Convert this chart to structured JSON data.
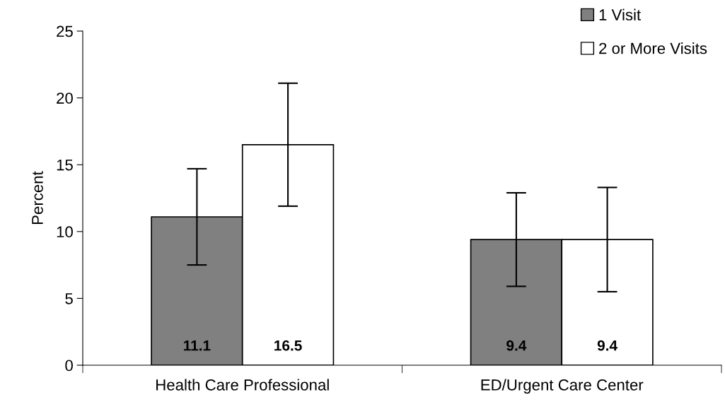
{
  "chart_data": {
    "type": "bar",
    "ylabel": "Percent",
    "categories": [
      "Health Care Professional",
      "ED/Urgent Care Center"
    ],
    "series": [
      {
        "name": "1 Visit",
        "color": "#808080",
        "values": [
          11.1,
          9.4
        ],
        "errors": [
          [
            7.5,
            14.7
          ],
          [
            5.9,
            12.9
          ]
        ],
        "value_labels": [
          "11.1",
          "9.4"
        ]
      },
      {
        "name": "2 or More Visits",
        "color": "#ffffff",
        "values": [
          16.5,
          9.4
        ],
        "errors": [
          [
            11.9,
            21.1
          ],
          [
            5.5,
            13.3
          ]
        ],
        "value_labels": [
          "16.5",
          "9.4"
        ]
      }
    ],
    "ylim": [
      0,
      25
    ],
    "yticks": [
      0,
      5,
      10,
      15,
      20,
      25
    ],
    "grid": false,
    "legend": "top right"
  }
}
